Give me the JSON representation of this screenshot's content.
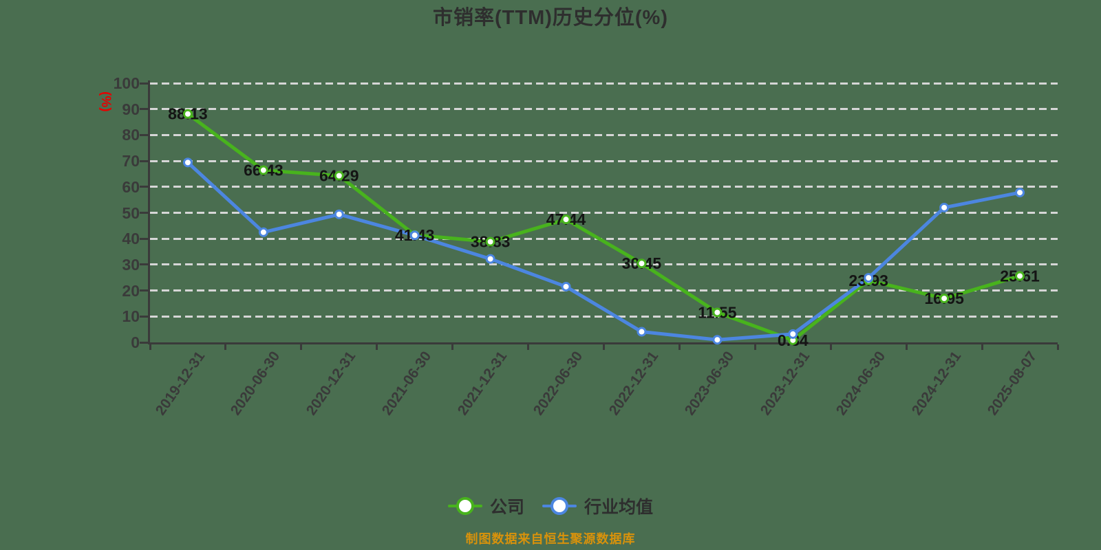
{
  "title": "市销率(TTM)历史分位(%)",
  "y_axis_unit_label": "(%)",
  "footer": {
    "source_text": "制图数据来自恒生聚源数据库"
  },
  "colors": {
    "background": "#4a6e50",
    "company_line": "#48b31d",
    "industry_line": "#4c86e0",
    "gridline": "#d6d6d6",
    "axis": "#3a3a3a",
    "title_text": "#2e2e2e",
    "data_label_text": "#141414",
    "y_unit_label": "#e60000",
    "footer_text": "#d9920b"
  },
  "chart_data": {
    "type": "line",
    "title": "市销率(TTM)历史分位(%)",
    "ylabel": "(%)",
    "ylim": [
      0,
      100
    ],
    "y_ticks": [
      0,
      10,
      20,
      30,
      40,
      50,
      60,
      70,
      80,
      90,
      100
    ],
    "grid": "horizontal-dashed",
    "legend_position": "bottom",
    "categories": [
      "2019-12-31",
      "2020-06-30",
      "2020-12-31",
      "2021-06-30",
      "2021-12-31",
      "2022-06-30",
      "2022-12-31",
      "2023-06-30",
      "2023-12-31",
      "2024-06-30",
      "2024-12-31",
      "2025-08-07"
    ],
    "series": [
      {
        "name": "公司",
        "color": "#48b31d",
        "values": [
          88.13,
          66.43,
          64.29,
          41.43,
          38.83,
          47.44,
          30.45,
          11.55,
          0.84,
          23.93,
          16.95,
          25.61
        ],
        "labels": [
          "88.13",
          "66.43",
          "64.29",
          "41.43",
          "38.83",
          "47.44",
          "30.45",
          "11.55",
          "0.84",
          "23.93",
          "16.95",
          "25.61"
        ],
        "show_labels": true
      },
      {
        "name": "行业均值",
        "color": "#4c86e0",
        "values": [
          69.4,
          42.5,
          49.4,
          41.3,
          32.2,
          21.5,
          4.1,
          1.0,
          3.2,
          24.9,
          52.0,
          57.8
        ],
        "show_labels": false
      }
    ]
  }
}
